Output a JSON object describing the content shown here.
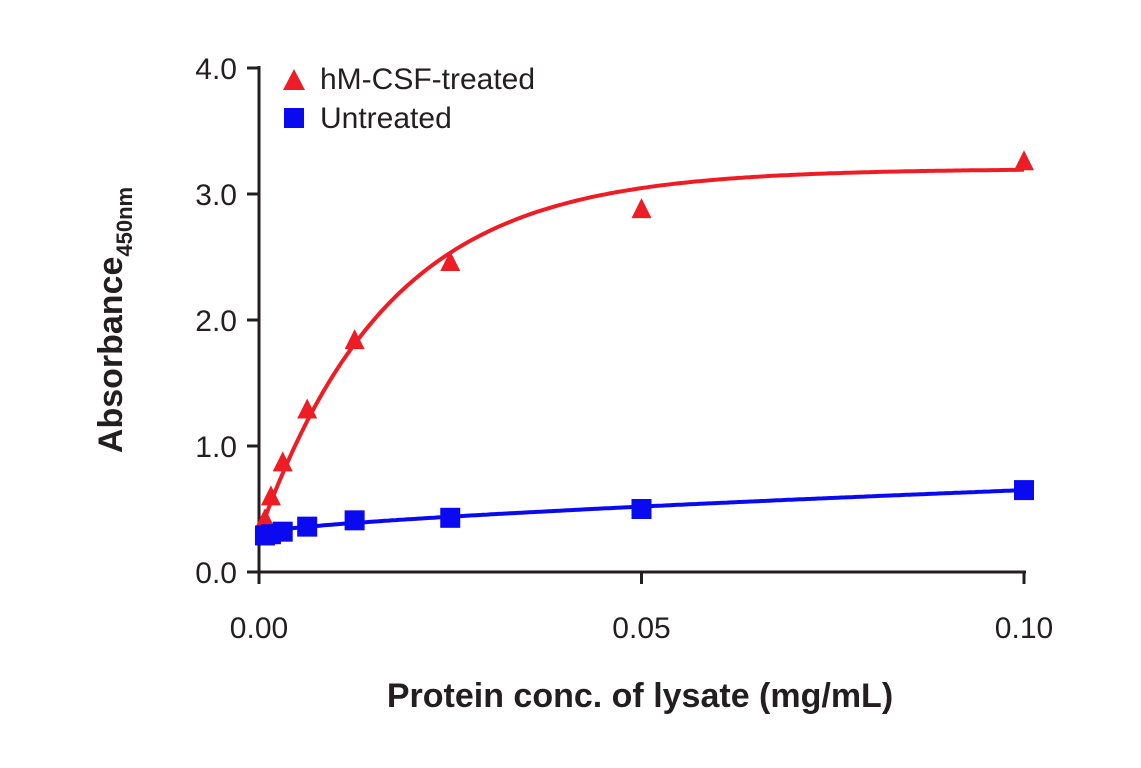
{
  "chart_data": {
    "type": "scatter",
    "title": "",
    "xlabel": "Protein conc. of lysate (mg/mL)",
    "ylabel": "Absorbance",
    "ylabel_sub": "450nm",
    "xlim": [
      0,
      0.1
    ],
    "ylim": [
      0,
      4.0
    ],
    "xticks": [
      "0.00",
      "0.05",
      "0.10"
    ],
    "xtick_values": [
      0,
      0.05,
      0.1
    ],
    "yticks": [
      "0.0",
      "1.0",
      "2.0",
      "3.0",
      "4.0"
    ],
    "ytick_values": [
      0,
      1,
      2,
      3,
      4
    ],
    "grid": false,
    "legend_placement": "top-left",
    "series": [
      {
        "name": "hM-CSF-treated",
        "marker": "triangle",
        "color": "#ee1c24",
        "x": [
          0.00078,
          0.00156,
          0.0031,
          0.0063,
          0.0125,
          0.025,
          0.05,
          0.1
        ],
        "y": [
          0.42,
          0.6,
          0.87,
          1.29,
          1.84,
          2.46,
          2.88,
          3.26
        ]
      },
      {
        "name": "Untreated",
        "marker": "square",
        "color": "#0a0af0",
        "x": [
          0.00078,
          0.00156,
          0.0031,
          0.0063,
          0.0125,
          0.025,
          0.05,
          0.1
        ],
        "y": [
          0.29,
          0.3,
          0.32,
          0.36,
          0.41,
          0.43,
          0.5,
          0.65
        ]
      }
    ]
  }
}
